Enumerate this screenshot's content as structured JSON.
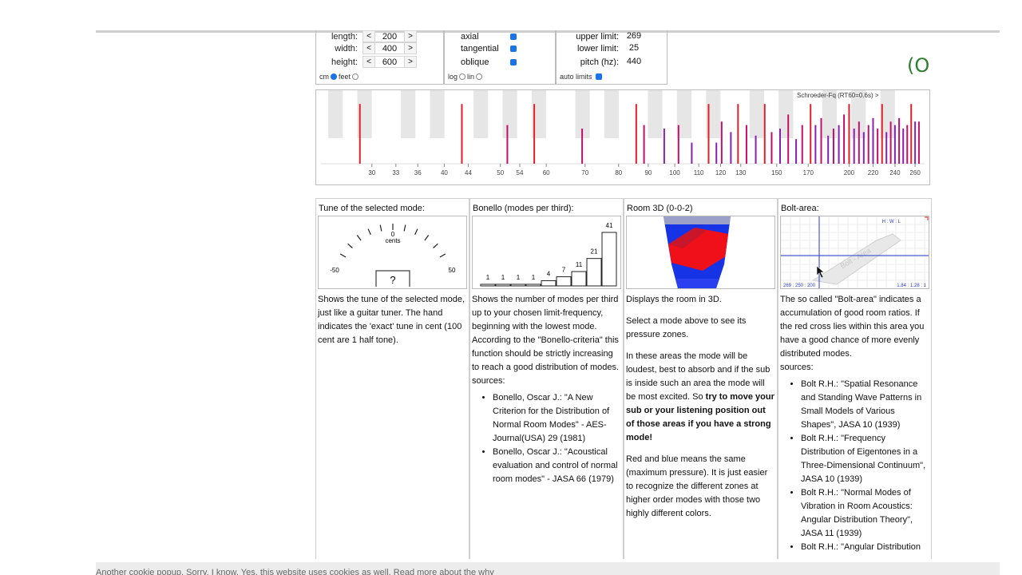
{
  "dims": {
    "length_label": "length:",
    "length_value": "200",
    "width_label": "width:",
    "width_value": "400",
    "height_label": "height:",
    "height_value": "600",
    "dec": "<",
    "inc": ">",
    "unit_cm": "cm",
    "unit_feet": "feet"
  },
  "modes": {
    "axial": "axial",
    "tangential": "tangential",
    "oblique": "oblique",
    "log": "log",
    "lin": "lin"
  },
  "limits": {
    "upper_label": "upper limit:",
    "upper_value": "269",
    "lower_label": "lower limit:",
    "lower_value": "25",
    "pitch_label": "pitch (hz):",
    "pitch_value": "440",
    "auto_label": "auto limits"
  },
  "logo_text": "(O",
  "chart_data": {
    "type": "bar",
    "annotation": "Schroeder-Fq (RT60=0.6s) >",
    "x_ticks": [
      "30",
      "33",
      "36",
      "40",
      "44",
      "50",
      "54",
      "60",
      "70",
      "80",
      "90",
      "100",
      "110",
      "120",
      "130",
      "150",
      "170",
      "200",
      "220",
      "240",
      "260"
    ],
    "colors": {
      "axial": "#e0202a",
      "tangential": "#c0106a",
      "oblique": "#8a20b0"
    },
    "modes_hz": [
      {
        "f": 28.6,
        "t": "axial",
        "h": 0.85
      },
      {
        "f": 42.9,
        "t": "axial",
        "h": 0.85
      },
      {
        "f": 51.4,
        "t": "tangential",
        "h": 0.55
      },
      {
        "f": 57.2,
        "t": "axial",
        "h": 0.85
      },
      {
        "f": 69.2,
        "t": "tangential",
        "h": 0.5
      },
      {
        "f": 85.8,
        "t": "axial",
        "h": 0.85
      },
      {
        "f": 88.5,
        "t": "tangential",
        "h": 0.55
      },
      {
        "f": 95.9,
        "t": "oblique",
        "h": 0.5
      },
      {
        "f": 101.5,
        "t": "tangential",
        "h": 0.55
      },
      {
        "f": 107,
        "t": "oblique",
        "h": 0.3
      },
      {
        "f": 114.4,
        "t": "axial",
        "h": 0.85
      },
      {
        "f": 118,
        "t": "oblique",
        "h": 0.3
      },
      {
        "f": 120.5,
        "t": "tangential",
        "h": 0.6
      },
      {
        "f": 125,
        "t": "oblique",
        "h": 0.45
      },
      {
        "f": 128.6,
        "t": "axial",
        "h": 0.85
      },
      {
        "f": 133,
        "t": "tangential",
        "h": 0.55
      },
      {
        "f": 138,
        "t": "oblique",
        "h": 0.4
      },
      {
        "f": 143,
        "t": "axial",
        "h": 0.85
      },
      {
        "f": 147,
        "t": "tangential",
        "h": 0.45
      },
      {
        "f": 152,
        "t": "oblique",
        "h": 0.5
      },
      {
        "f": 157,
        "t": "tangential",
        "h": 0.7
      },
      {
        "f": 162,
        "t": "oblique",
        "h": 0.35
      },
      {
        "f": 166,
        "t": "tangential",
        "h": 0.55
      },
      {
        "f": 171.6,
        "t": "axial",
        "h": 0.85
      },
      {
        "f": 175,
        "t": "oblique",
        "h": 0.55
      },
      {
        "f": 179,
        "t": "tangential",
        "h": 0.65
      },
      {
        "f": 184,
        "t": "oblique",
        "h": 0.4
      },
      {
        "f": 188,
        "t": "tangential",
        "h": 0.5
      },
      {
        "f": 192,
        "t": "oblique",
        "h": 0.55
      },
      {
        "f": 196,
        "t": "tangential",
        "h": 0.7
      },
      {
        "f": 200,
        "t": "axial",
        "h": 0.85
      },
      {
        "f": 204,
        "t": "oblique",
        "h": 0.5
      },
      {
        "f": 208,
        "t": "tangential",
        "h": 0.6
      },
      {
        "f": 212,
        "t": "oblique",
        "h": 0.45
      },
      {
        "f": 216,
        "t": "tangential",
        "h": 0.55
      },
      {
        "f": 220,
        "t": "oblique",
        "h": 0.65
      },
      {
        "f": 224,
        "t": "tangential",
        "h": 0.5
      },
      {
        "f": 228,
        "t": "axial",
        "h": 0.85
      },
      {
        "f": 232,
        "t": "oblique",
        "h": 0.45
      },
      {
        "f": 236,
        "t": "tangential",
        "h": 0.6
      },
      {
        "f": 240,
        "t": "oblique",
        "h": 0.55
      },
      {
        "f": 244,
        "t": "tangential",
        "h": 0.65
      },
      {
        "f": 248,
        "t": "oblique",
        "h": 0.5
      },
      {
        "f": 252,
        "t": "tangential",
        "h": 0.55
      },
      {
        "f": 256,
        "t": "axial",
        "h": 0.85
      },
      {
        "f": 260,
        "t": "oblique",
        "h": 0.6
      },
      {
        "f": 264,
        "t": "tangential",
        "h": 0.6
      }
    ]
  },
  "tuner": {
    "title": "Tune of the selected mode:",
    "zero": "0",
    "cents": "cents",
    "minus": "-50",
    "plus": "50",
    "unknown": "?",
    "desc": "Shows the tune of the selected mode, just like a guitar tuner. The hand indicates the 'exact' tune in cent (100 cent are 1 half tone)."
  },
  "bonello": {
    "title": "Bonello (modes per third):",
    "bars": [
      1,
      1,
      1,
      1,
      4,
      7,
      11,
      21,
      41
    ],
    "labels": [
      "1",
      "1",
      "1",
      "1",
      "4",
      "7",
      "11",
      "21",
      "41"
    ],
    "desc": "Shows the number of modes per third up to your chosen limit-frequency, beginning with the lowest mode. According to the \"Bonello-criteria\" this function should be strictly increasing to reach a good distribution of modes.",
    "sources_label": "sources:",
    "sources": [
      "Bonello, Oscar J.: \"A New Criterion for the Distribution of Normal Room Modes\" - AES-Journal(USA) 29 (1981)",
      "Bonello, Oscar J.: \"Acoustical evaluation and control of normal room modes\" - JASA 66 (1979)"
    ]
  },
  "room3d": {
    "title": "Room 3D (0-0-2)",
    "p1": "Displays the room in 3D.",
    "p2": "Select a mode above to see its pressure zones.",
    "p3a": "In these areas the mode will be loudest, best to absorb and if the sub is inside such an area the mode will be most excited. So ",
    "p3b": "try to move your sub or your listening position out of those areas if you have a strong mode!",
    "p4": "Red and blue means the same (maximum pressure). It is just easier to recognize the different zones at higher order modes with those two highly different colors."
  },
  "bolt": {
    "title": "Bolt-area:",
    "corner": "H : W : L",
    "bottom_left": "269 : 250 : 200",
    "bottom_right": "1.84 : 1.28 : 1",
    "area_label": "Bolt - Area",
    "desc": "The so called \"Bolt-area\" indicates a accumulation of good room ratios. If the red cross lies within this area you have a good chance of more evenly distributed modes.",
    "sources_label": "sources:",
    "sources": [
      "Bolt R.H.: \"Spatial Resonance and Standing Wave Patterns in Small Models of Various Shapes\", JASA 10 (1939)",
      "Bolt R.H.: \"Frequency Distribution of Eigentones in a Three-Dimensional Continuum\", JASA 10 (1939)",
      "Bolt R.H.: \"Normal Modes of Vibration in Room Acoustics: Angular Distribution Theory\", JASA 11 (1939)",
      "Bolt R.H.: \"Angular Distribution"
    ]
  },
  "cookie": "Another cookie popup. Sorry, I know. Yes, this website uses cookies as well. Read more about the why"
}
